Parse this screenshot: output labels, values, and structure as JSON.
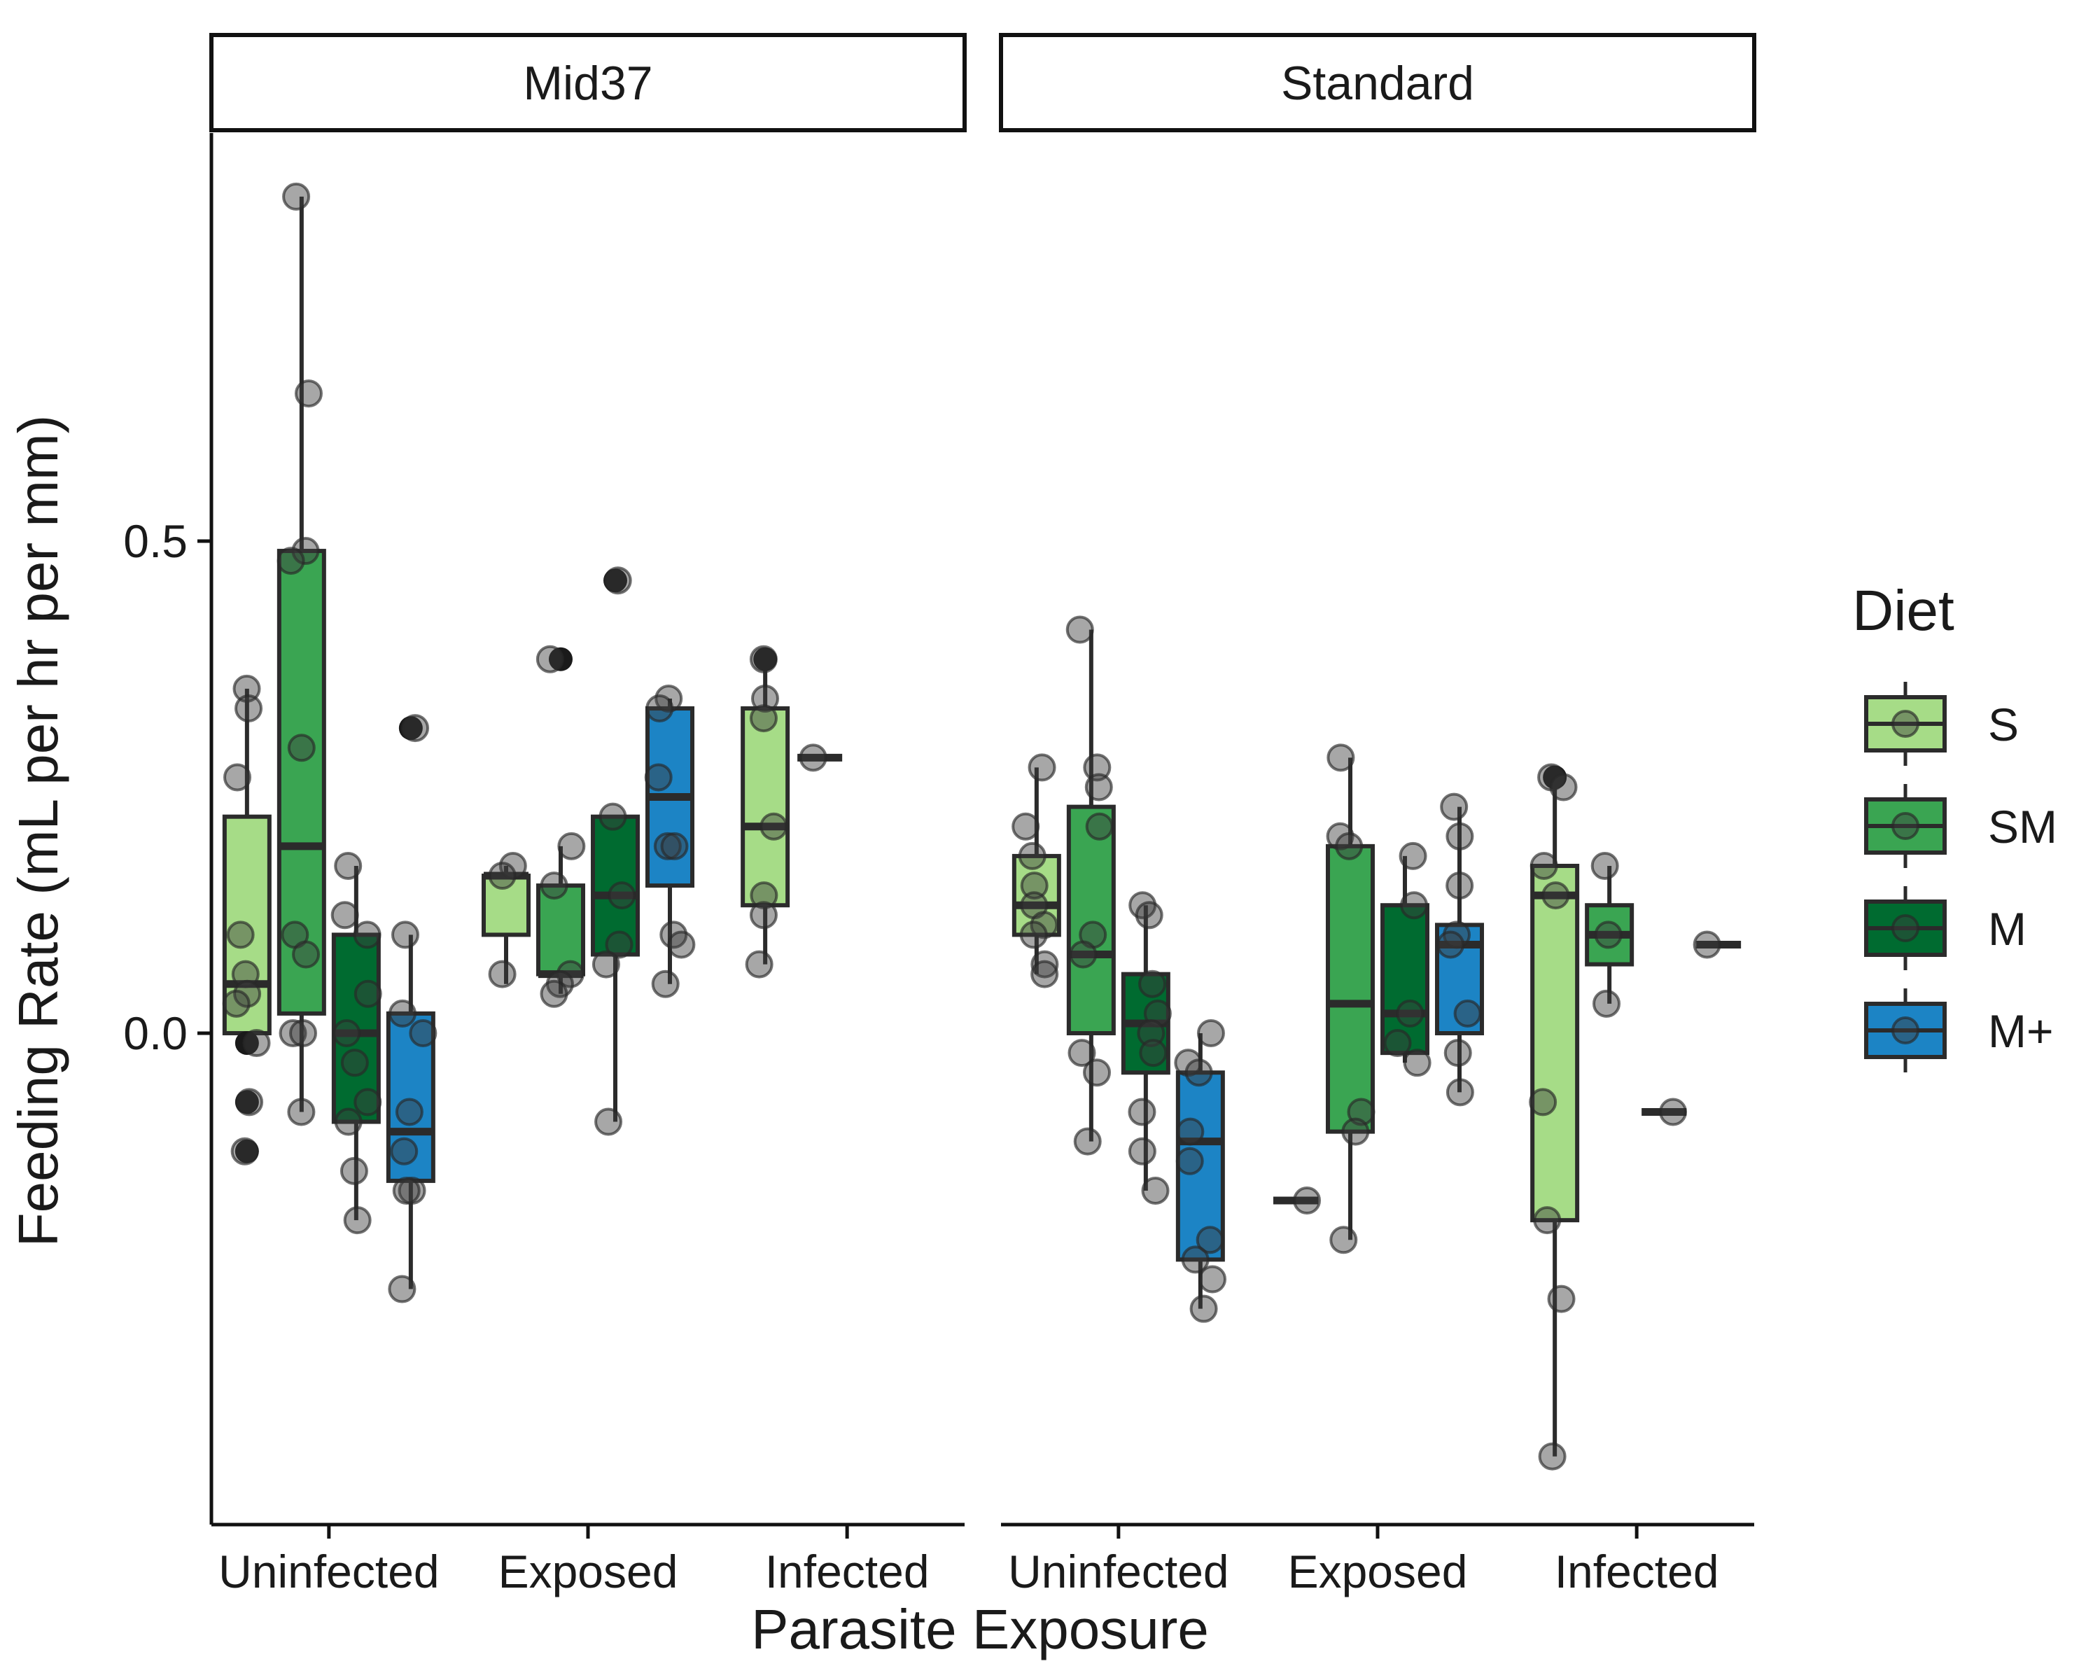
{
  "chart_data": {
    "type": "box",
    "ylabel": "Feeding Rate (mL per hr per mm)",
    "xlabel": "Parasite Exposure",
    "ylim": [
      -0.5,
      0.9
    ],
    "yticks": [
      0.0,
      0.5
    ],
    "ytick_labels": [
      "0.0",
      "0.5"
    ],
    "categories": [
      "Uninfected",
      "Exposed",
      "Infected"
    ],
    "grid": false,
    "legend": {
      "title": "Diet",
      "position": "right",
      "entries": [
        {
          "label": "S",
          "color": "#a6dc87"
        },
        {
          "label": "SM",
          "color": "#3aa552"
        },
        {
          "label": "M",
          "color": "#006b30"
        },
        {
          "label": "M+",
          "color": "#1c84c5"
        }
      ]
    },
    "facets": [
      {
        "label": "Mid37",
        "groups": [
          {
            "exposure": "Uninfected",
            "diet": "S",
            "box": {
              "lower": 0.0,
              "q1": 0.0,
              "median": 0.05,
              "q3": 0.22,
              "upper": 0.35
            },
            "points": [
              0.35,
              0.33,
              0.26,
              0.1,
              0.06,
              0.04,
              0.03,
              -0.01,
              -0.07,
              -0.12
            ]
          },
          {
            "exposure": "Uninfected",
            "diet": "SM",
            "box": {
              "lower": -0.08,
              "q1": 0.02,
              "median": 0.19,
              "q3": 0.49,
              "upper": 0.85
            },
            "points": [
              0.85,
              0.65,
              0.49,
              0.48,
              0.29,
              0.1,
              0.08,
              0.0,
              0.0,
              -0.08
            ]
          },
          {
            "exposure": "Uninfected",
            "diet": "M",
            "box": {
              "lower": -0.19,
              "q1": -0.09,
              "median": 0.0,
              "q3": 0.1,
              "upper": 0.17
            },
            "points": [
              0.17,
              0.12,
              0.1,
              0.04,
              0.0,
              -0.03,
              -0.07,
              -0.09,
              -0.14,
              -0.19
            ]
          },
          {
            "exposure": "Uninfected",
            "diet": "M+",
            "box": {
              "lower": -0.26,
              "q1": -0.15,
              "median": -0.1,
              "q3": 0.02,
              "upper": 0.1
            },
            "points": [
              0.31,
              0.1,
              0.02,
              0.0,
              -0.08,
              -0.12,
              -0.16,
              -0.16,
              -0.26
            ]
          },
          {
            "exposure": "Exposed",
            "diet": "S",
            "box": {
              "lower": 0.05,
              "q1": 0.1,
              "median": 0.16,
              "q3": 0.16,
              "upper": 0.17
            },
            "points": [
              0.17,
              0.16,
              0.06
            ]
          },
          {
            "exposure": "Exposed",
            "diet": "SM",
            "box": {
              "lower": 0.04,
              "q1": 0.06,
              "median": 0.06,
              "q3": 0.15,
              "upper": 0.19
            },
            "points": [
              0.38,
              0.19,
              0.15,
              0.06,
              0.05,
              0.04
            ]
          },
          {
            "exposure": "Exposed",
            "diet": "M",
            "box": {
              "lower": -0.09,
              "q1": 0.08,
              "median": 0.14,
              "q3": 0.22,
              "upper": 0.22
            },
            "points": [
              0.46,
              0.22,
              0.14,
              0.09,
              0.07,
              -0.09
            ]
          },
          {
            "exposure": "Exposed",
            "diet": "M+",
            "box": {
              "lower": 0.05,
              "q1": 0.15,
              "median": 0.24,
              "q3": 0.33,
              "upper": 0.34
            },
            "points": [
              0.34,
              0.33,
              0.26,
              0.19,
              0.19,
              0.1,
              0.09,
              0.05
            ]
          },
          {
            "exposure": "Infected",
            "diet": "S",
            "box": {
              "lower": 0.07,
              "q1": 0.13,
              "median": 0.21,
              "q3": 0.33,
              "upper": 0.37
            },
            "points": [
              0.38,
              0.34,
              0.32,
              0.21,
              0.14,
              0.12,
              0.07
            ]
          },
          {
            "exposure": "Infected",
            "diet": "SM",
            "box": {
              "lower": 0.28,
              "q1": 0.28,
              "median": 0.28,
              "q3": 0.28,
              "upper": 0.28
            },
            "points": [
              0.28
            ]
          }
        ]
      },
      {
        "label": "Standard",
        "groups": [
          {
            "exposure": "Uninfected",
            "diet": "S",
            "box": {
              "lower": 0.06,
              "q1": 0.1,
              "median": 0.13,
              "q3": 0.18,
              "upper": 0.27
            },
            "points": [
              0.27,
              0.21,
              0.18,
              0.15,
              0.13,
              0.11,
              0.1,
              0.07,
              0.06
            ]
          },
          {
            "exposure": "Uninfected",
            "diet": "SM",
            "box": {
              "lower": -0.11,
              "q1": 0.0,
              "median": 0.08,
              "q3": 0.23,
              "upper": 0.41
            },
            "points": [
              0.41,
              0.27,
              0.25,
              0.21,
              0.1,
              0.08,
              -0.02,
              -0.04,
              -0.11
            ]
          },
          {
            "exposure": "Uninfected",
            "diet": "M",
            "box": {
              "lower": -0.16,
              "q1": -0.04,
              "median": 0.01,
              "q3": 0.06,
              "upper": 0.13
            },
            "points": [
              0.13,
              0.12,
              0.05,
              0.02,
              0.0,
              -0.02,
              -0.08,
              -0.12,
              -0.16
            ]
          },
          {
            "exposure": "Uninfected",
            "diet": "M+",
            "box": {
              "lower": -0.28,
              "q1": -0.23,
              "median": -0.11,
              "q3": -0.04,
              "upper": 0.0
            },
            "points": [
              0.0,
              -0.03,
              -0.04,
              -0.1,
              -0.13,
              -0.21,
              -0.23,
              -0.25,
              -0.28
            ]
          },
          {
            "exposure": "Exposed",
            "diet": "S",
            "box": {
              "lower": -0.17,
              "q1": -0.17,
              "median": -0.17,
              "q3": -0.17,
              "upper": -0.17
            },
            "points": [
              -0.17
            ]
          },
          {
            "exposure": "Exposed",
            "diet": "SM",
            "box": {
              "lower": -0.21,
              "q1": -0.1,
              "median": 0.03,
              "q3": 0.19,
              "upper": 0.28
            },
            "points": [
              0.28,
              0.2,
              0.19,
              -0.08,
              -0.1,
              -0.21
            ]
          },
          {
            "exposure": "Exposed",
            "diet": "M",
            "box": {
              "lower": -0.03,
              "q1": -0.02,
              "median": 0.02,
              "q3": 0.13,
              "upper": 0.18
            },
            "points": [
              0.18,
              0.13,
              0.02,
              -0.01,
              -0.03
            ]
          },
          {
            "exposure": "Exposed",
            "diet": "M+",
            "box": {
              "lower": -0.06,
              "q1": 0.0,
              "median": 0.09,
              "q3": 0.11,
              "upper": 0.23
            },
            "points": [
              0.23,
              0.2,
              0.15,
              0.1,
              0.09,
              0.02,
              -0.02,
              -0.06
            ]
          },
          {
            "exposure": "Infected",
            "diet": "S",
            "box": {
              "lower": -0.43,
              "q1": -0.19,
              "median": 0.14,
              "q3": 0.17,
              "upper": 0.25
            },
            "points": [
              0.26,
              0.25,
              0.17,
              0.14,
              -0.07,
              -0.19,
              -0.27,
              -0.43
            ]
          },
          {
            "exposure": "Infected",
            "diet": "SM",
            "box": {
              "lower": 0.03,
              "q1": 0.07,
              "median": 0.1,
              "q3": 0.13,
              "upper": 0.17
            },
            "points": [
              0.17,
              0.1,
              0.03
            ]
          },
          {
            "exposure": "Infected",
            "diet": "M",
            "box": {
              "lower": -0.08,
              "q1": -0.08,
              "median": -0.08,
              "q3": -0.08,
              "upper": -0.08
            },
            "points": [
              -0.08
            ]
          },
          {
            "exposure": "Infected",
            "diet": "M+",
            "box": {
              "lower": 0.09,
              "q1": 0.09,
              "median": 0.09,
              "q3": 0.09,
              "upper": 0.09
            },
            "points": [
              0.09
            ]
          }
        ]
      }
    ]
  }
}
